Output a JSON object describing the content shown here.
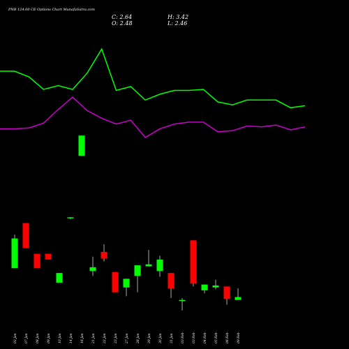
{
  "chart_data": {
    "type": "candlestick",
    "title": "PNB 124.00 CE Options Chart MunafaSutra.com",
    "ohlc_labels": {
      "c": "C: 2.64",
      "h": "H: 3.42",
      "o": "O: 2.48",
      "l": "L: 2.46"
    },
    "colors": {
      "background": "#000000",
      "up": "#00ff00",
      "down": "#ff0000",
      "line_green": "#00ff00",
      "line_magenta": "#cc00cc",
      "text": "#ffffff"
    },
    "categories": [
      "02 Jan",
      "07 Jan",
      "08 Jan",
      "09 Jan",
      "10 Jan",
      "14 Jan",
      "16 Jan",
      "21 Jan",
      "22 Jan",
      "23 Jan",
      "27 Jan",
      "28 Jan",
      "29 Jan",
      "30 Jan",
      "31 Jan",
      "03 Feb",
      "03 Feb",
      "04 Feb",
      "05 Feb",
      "06 Feb",
      "09 Feb"
    ],
    "candles": [
      {
        "o": 2.55,
        "h": 2.9,
        "l": 2.55,
        "c": 2.86
      },
      {
        "o": 3.02,
        "h": 3.02,
        "l": 2.76,
        "c": 2.76
      },
      {
        "o": 2.7,
        "h": 2.7,
        "l": 2.55,
        "c": 2.55
      },
      {
        "o": 2.7,
        "h": 2.7,
        "l": 2.64,
        "c": 2.64
      },
      {
        "o": 2.4,
        "h": 2.5,
        "l": 2.4,
        "c": 2.5
      },
      {
        "o": 3.08,
        "h": 3.08,
        "l": 3.06,
        "c": 3.08
      },
      {
        "o": 3.72,
        "h": 3.93,
        "l": 3.72,
        "c": 3.93
      },
      {
        "o": 2.52,
        "h": 2.67,
        "l": 2.47,
        "c": 2.56
      },
      {
        "o": 2.72,
        "h": 2.8,
        "l": 2.62,
        "c": 2.65
      },
      {
        "o": 2.51,
        "h": 2.51,
        "l": 2.3,
        "c": 2.3
      },
      {
        "o": 2.35,
        "h": 2.44,
        "l": 2.26,
        "c": 2.44
      },
      {
        "o": 2.47,
        "h": 2.58,
        "l": 2.3,
        "c": 2.58
      },
      {
        "o": 2.57,
        "h": 2.74,
        "l": 2.57,
        "c": 2.59
      },
      {
        "o": 2.52,
        "h": 2.68,
        "l": 2.46,
        "c": 2.64
      },
      {
        "o": 2.5,
        "h": 2.5,
        "l": 2.24,
        "c": 2.34
      },
      {
        "o": 2.21,
        "h": 2.24,
        "l": 2.11,
        "c": 2.22
      },
      {
        "o": 2.84,
        "h": 2.84,
        "l": 2.36,
        "c": 2.39
      },
      {
        "o": 2.32,
        "h": 2.38,
        "l": 2.29,
        "c": 2.38
      },
      {
        "o": 2.35,
        "h": 2.43,
        "l": 2.33,
        "c": 2.37
      },
      {
        "o": 2.36,
        "h": 2.36,
        "l": 2.17,
        "c": 2.23
      },
      {
        "o": 2.22,
        "h": 2.34,
        "l": 2.22,
        "c": 2.25
      }
    ],
    "line_green_y": [
      4.6,
      4.6,
      4.54,
      4.41,
      4.45,
      4.41,
      4.58,
      4.83,
      4.4,
      4.44,
      4.3,
      4.36,
      4.4,
      4.4,
      4.41,
      4.28,
      4.25,
      4.3,
      4.3,
      4.3,
      4.22,
      4.24
    ],
    "line_magenta_y": [
      4.0,
      4.0,
      4.01,
      4.06,
      4.2,
      4.33,
      4.19,
      4.11,
      4.05,
      4.09,
      3.91,
      4.0,
      4.05,
      4.07,
      4.07,
      3.97,
      3.98,
      4.03,
      4.02,
      4.04,
      3.99,
      4.02
    ],
    "ylim": [
      2.0,
      5.05
    ],
    "grid": false
  }
}
